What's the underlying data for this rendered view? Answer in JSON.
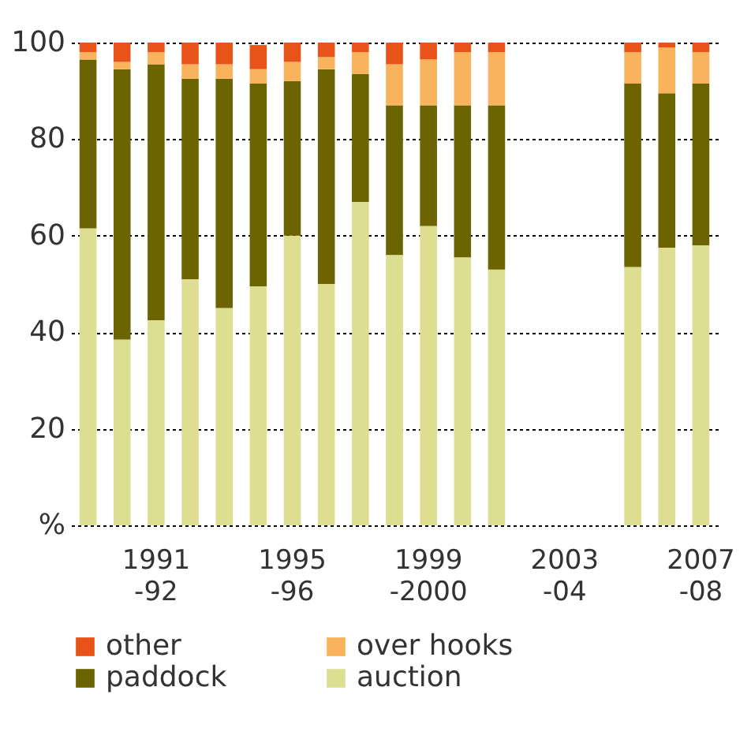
{
  "chart_data": {
    "type": "bar",
    "stacked": true,
    "categories": [
      null,
      null,
      "1991 -92",
      null,
      null,
      null,
      "1995 -96",
      null,
      null,
      null,
      "1999 -2000",
      null,
      null,
      null,
      "2003 -04",
      null,
      null,
      null,
      "2007 -08"
    ],
    "series": [
      {
        "name": "auction",
        "color": "#dede93",
        "values": [
          61.5,
          38.5,
          42.5,
          51,
          45,
          49.5,
          60,
          50,
          67,
          56,
          62,
          55.5,
          53,
          null,
          null,
          null,
          53.5,
          57.5,
          58
        ]
      },
      {
        "name": "paddock",
        "color": "#6b6400",
        "values": [
          35,
          56,
          53,
          41.5,
          47.5,
          42,
          32,
          44.5,
          26.5,
          31,
          25,
          31.5,
          34,
          null,
          null,
          null,
          38,
          32,
          33.5
        ]
      },
      {
        "name": "over hooks",
        "color": "#f9b35c",
        "values": [
          1.5,
          1.5,
          2.5,
          3,
          3,
          3,
          4,
          2.5,
          4.5,
          8.5,
          9.5,
          11,
          11,
          null,
          null,
          null,
          6.5,
          9.5,
          6.5
        ]
      },
      {
        "name": "other",
        "color": "#e8531a",
        "values": [
          2,
          4,
          2,
          4.5,
          4.5,
          5,
          4,
          3,
          2,
          4.5,
          3.5,
          2,
          2,
          null,
          null,
          null,
          2,
          1,
          2
        ]
      }
    ],
    "ylim": [
      0,
      100
    ],
    "yticks": [
      {
        "value": 0,
        "label": "%"
      },
      20,
      40,
      60,
      80,
      100
    ],
    "grid": "y",
    "legend": "bottom"
  }
}
